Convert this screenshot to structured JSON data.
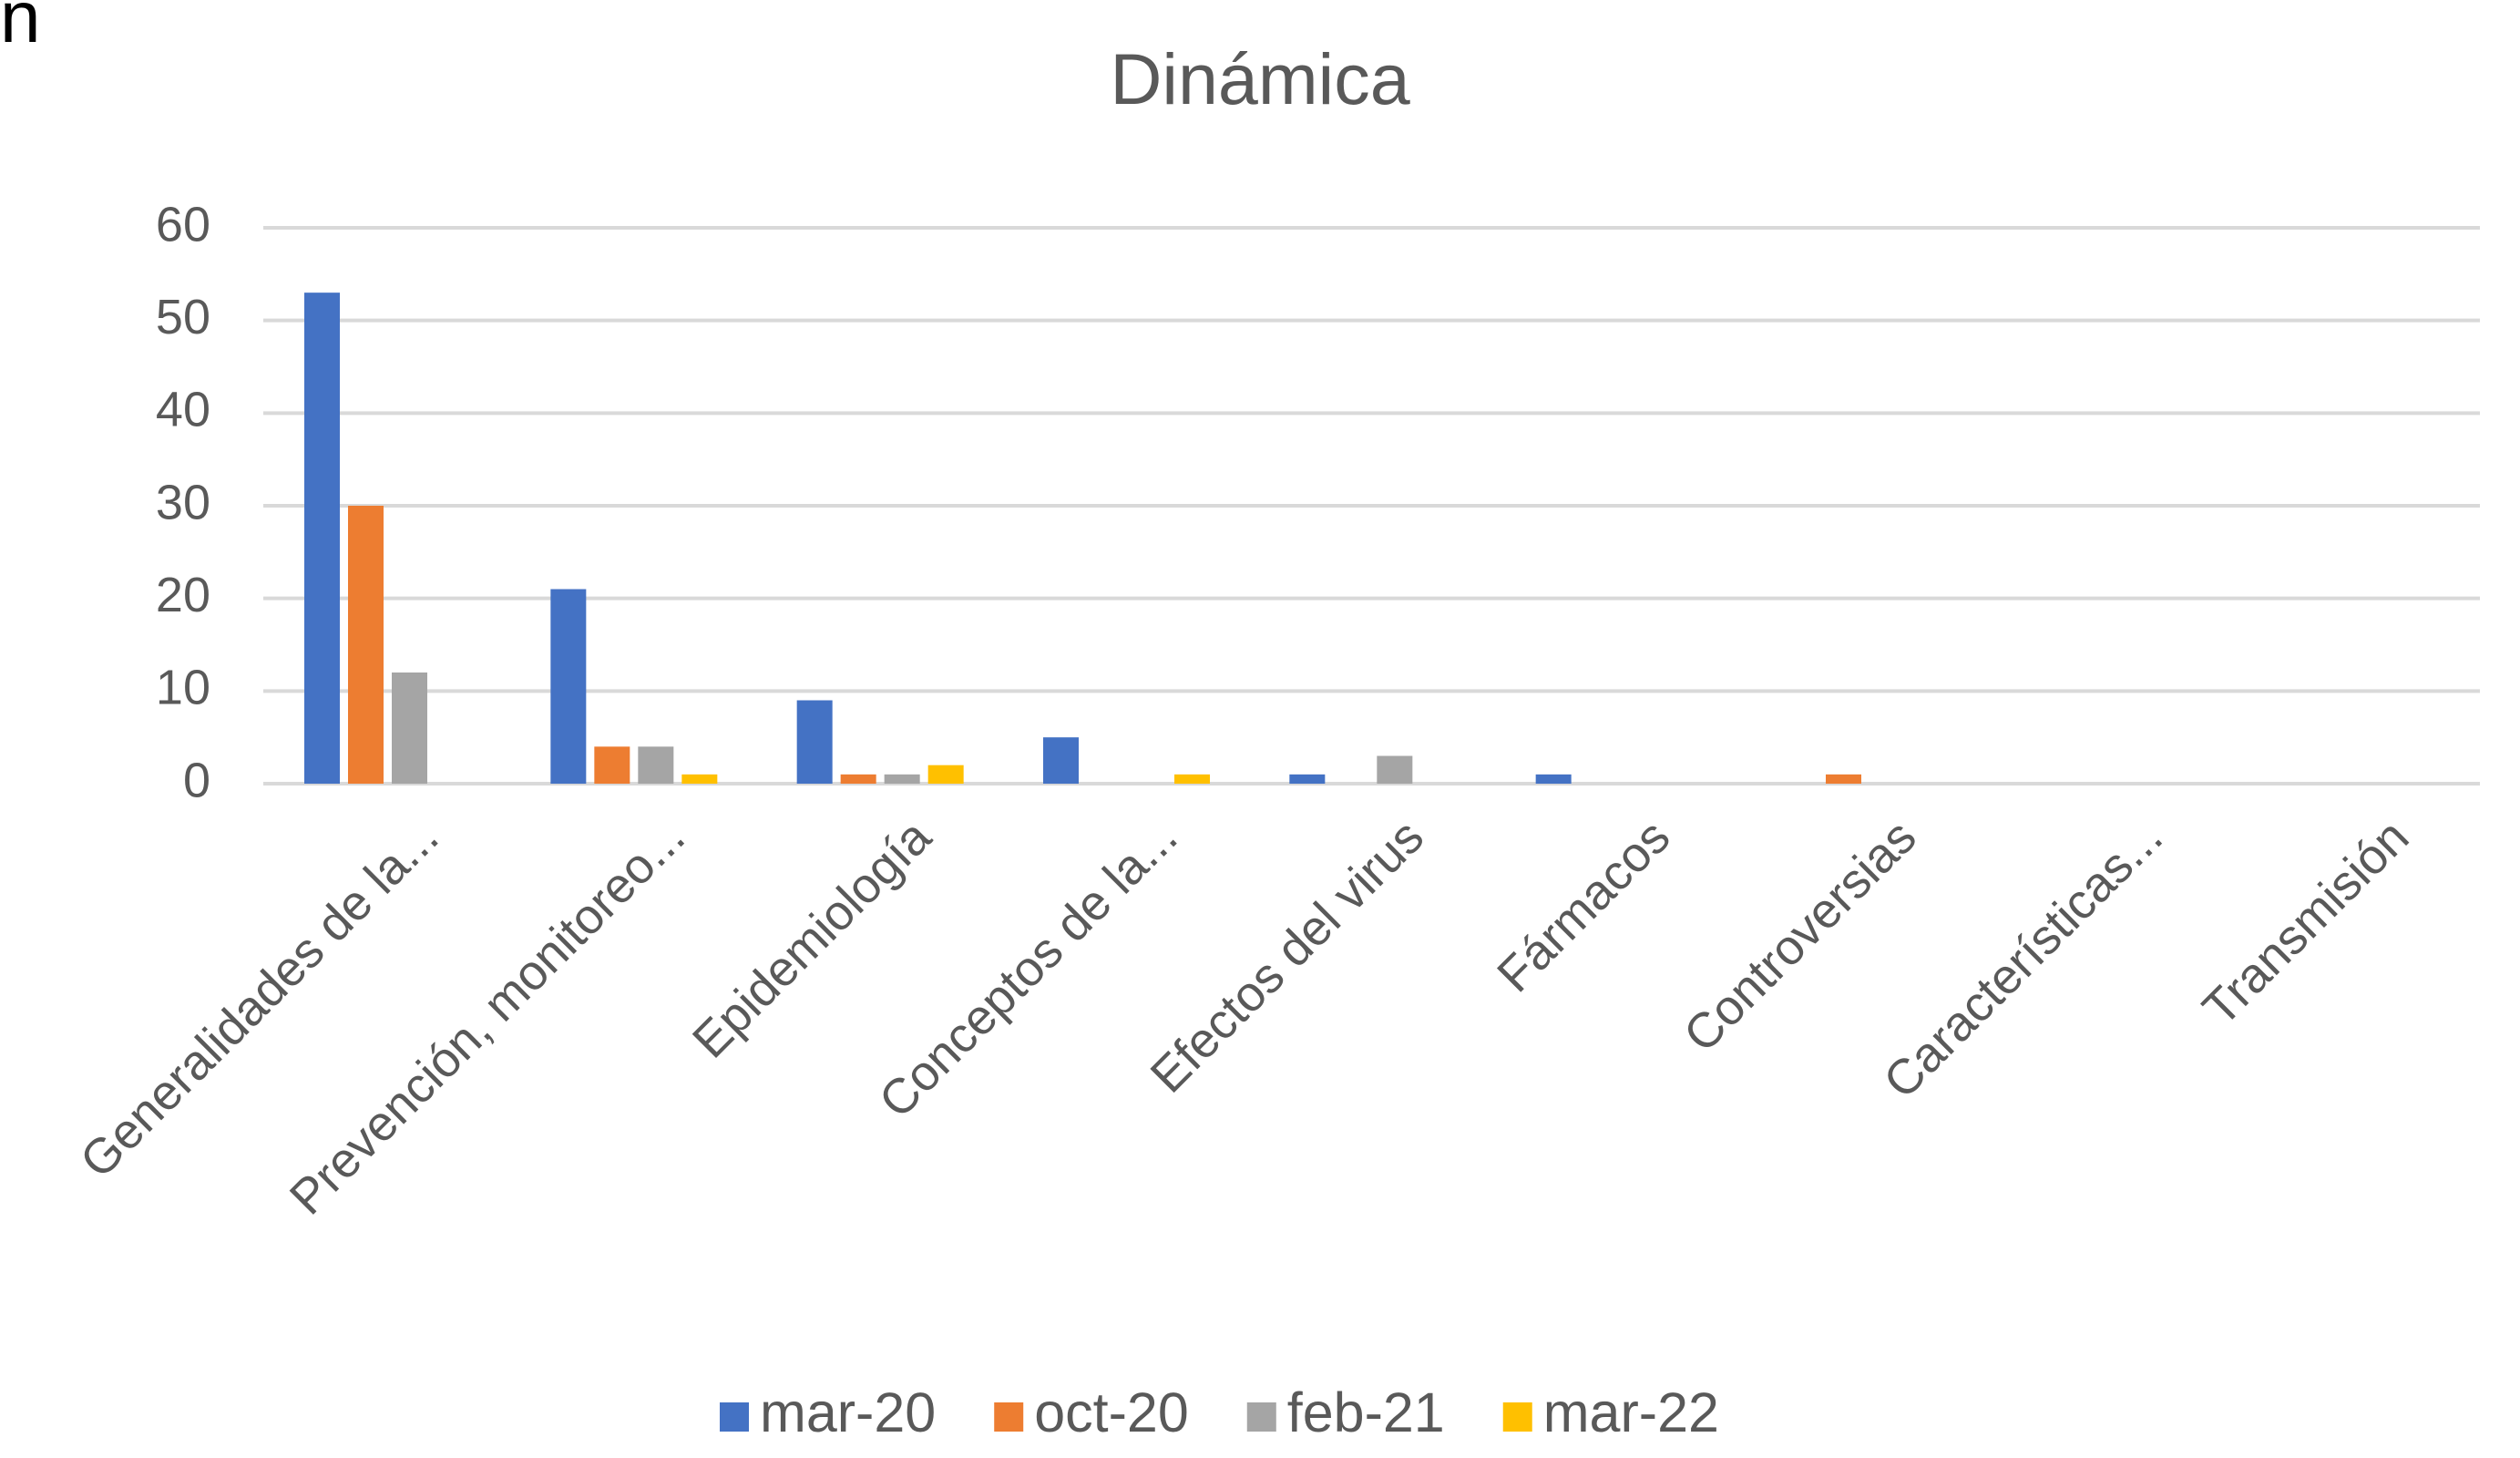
{
  "panel_label": "n",
  "chart_data": {
    "type": "bar",
    "title": "Dinámica",
    "categories": [
      "Generalidades de la...",
      "Prevención, monitoreo...",
      "Epidemiología",
      "Conceptos de la...",
      "Efectos del virus",
      "Fármacos",
      "Controversias",
      "Características...",
      "Transmisión"
    ],
    "series": [
      {
        "name": "mar-20",
        "color": "#4472c4",
        "values": [
          53,
          21,
          9,
          5,
          1,
          1,
          0,
          0,
          0
        ]
      },
      {
        "name": "oct-20",
        "color": "#ed7d31",
        "values": [
          30,
          4,
          1,
          0,
          0,
          0,
          1,
          0,
          0
        ]
      },
      {
        "name": "feb-21",
        "color": "#a5a5a5",
        "values": [
          12,
          4,
          1,
          0,
          3,
          0,
          0,
          0,
          0
        ]
      },
      {
        "name": "mar-22",
        "color": "#ffc000",
        "values": [
          0,
          1,
          2,
          1,
          0,
          0,
          0,
          0,
          0
        ]
      }
    ],
    "ylim": [
      0,
      60
    ],
    "yticks": [
      0,
      10,
      20,
      30,
      40,
      50,
      60
    ],
    "grid": true,
    "legend": "bottom"
  }
}
